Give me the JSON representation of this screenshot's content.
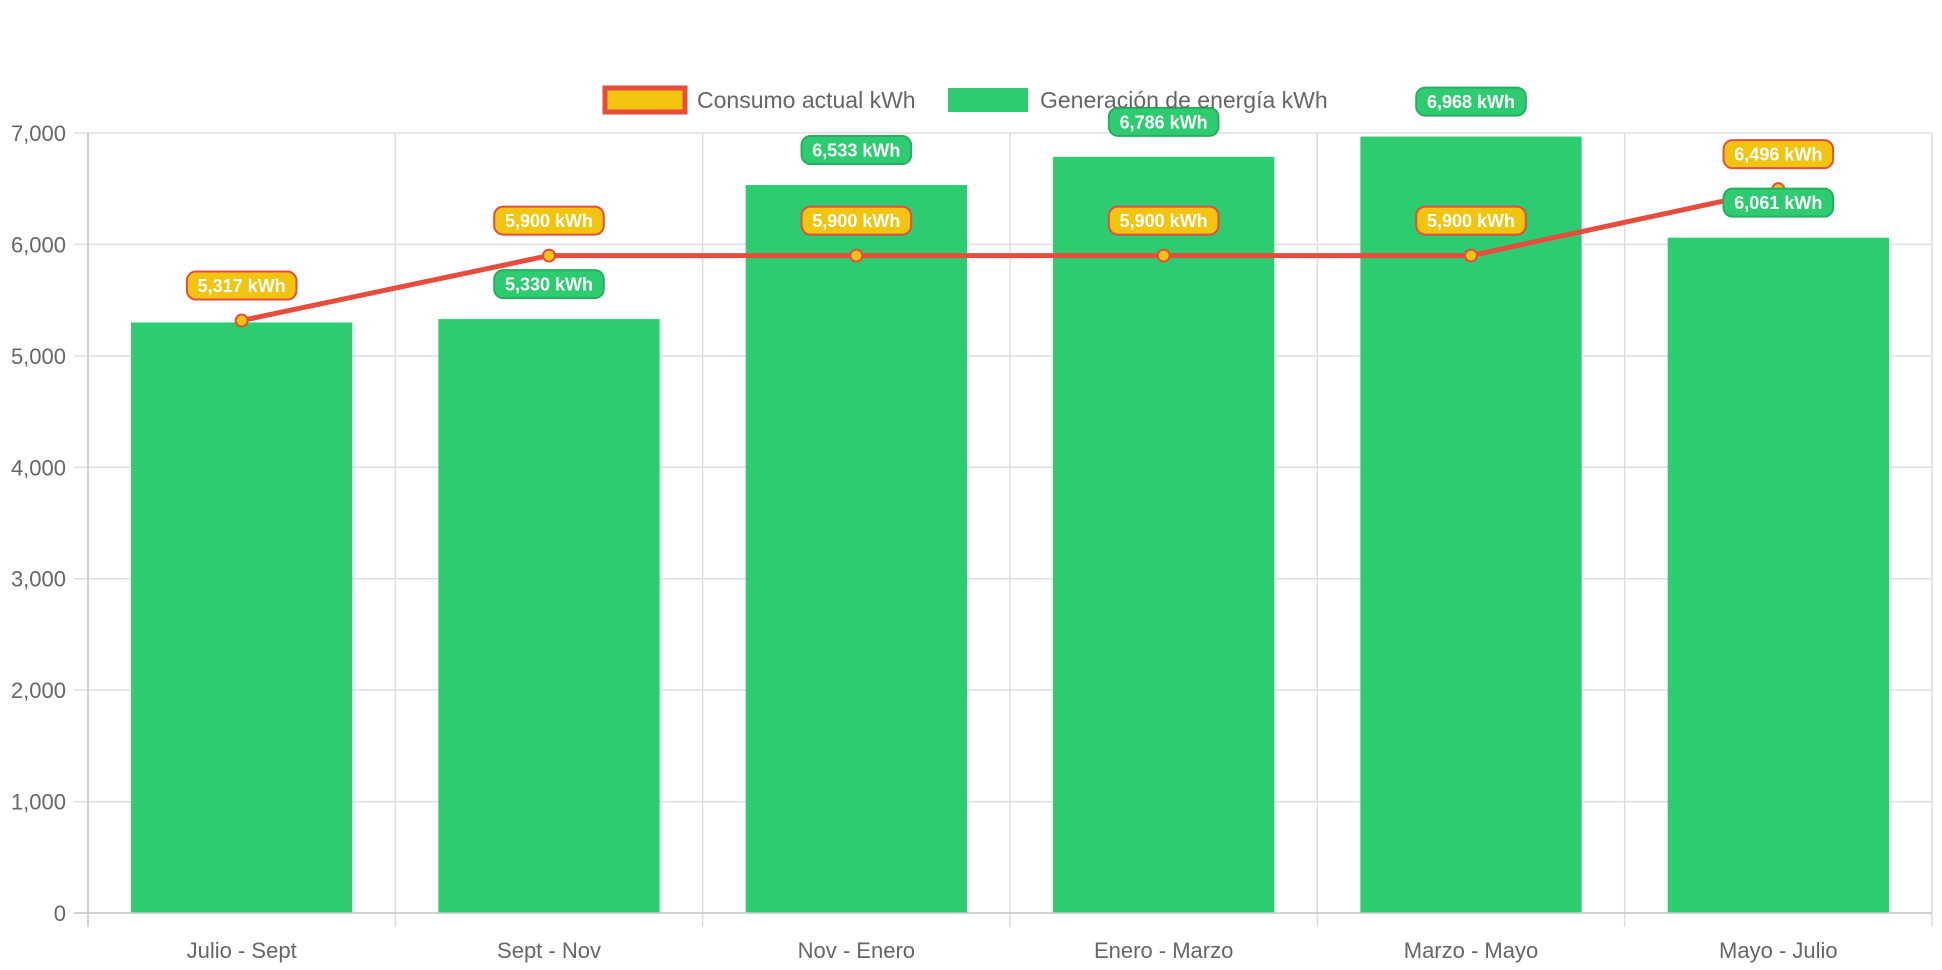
{
  "chart_data": {
    "type": "bar",
    "categories": [
      "Julio - Sept",
      "Sept - Nov",
      "Nov - Enero",
      "Enero - Marzo",
      "Marzo - Mayo",
      "Mayo - Julio"
    ],
    "series": [
      {
        "name": "Consumo actual kWh",
        "type": "line",
        "values": [
          5317,
          5900,
          5900,
          5900,
          5900,
          6496
        ],
        "data_labels": [
          "5,317 kWh",
          "5,900 kWh",
          "5,900 kWh",
          "5,900 kWh",
          "5,900 kWh",
          "6,496 kWh"
        ],
        "line_color": "#e74c3c",
        "point_color": "#f1c40f",
        "label_bg": "#f1c40f",
        "label_border": "#e74c3c"
      },
      {
        "name": "Generación de energía kWh",
        "type": "bar",
        "values": [
          5300,
          5330,
          6533,
          6786,
          6968,
          6061
        ],
        "data_labels": [
          "",
          "5,330 kWh",
          "6,533 kWh",
          "6,786 kWh",
          "6,968 kWh",
          "6,061 kWh"
        ],
        "color": "#2ecc71",
        "label_bg": "#2ecc71",
        "label_border": "#27ae60"
      }
    ],
    "y_ticks": [
      "0",
      "1,000",
      "2,000",
      "3,000",
      "4,000",
      "5,000",
      "6,000",
      "7,000"
    ],
    "ylim": [
      0,
      7000
    ],
    "grid": true,
    "legend_position": "top"
  }
}
